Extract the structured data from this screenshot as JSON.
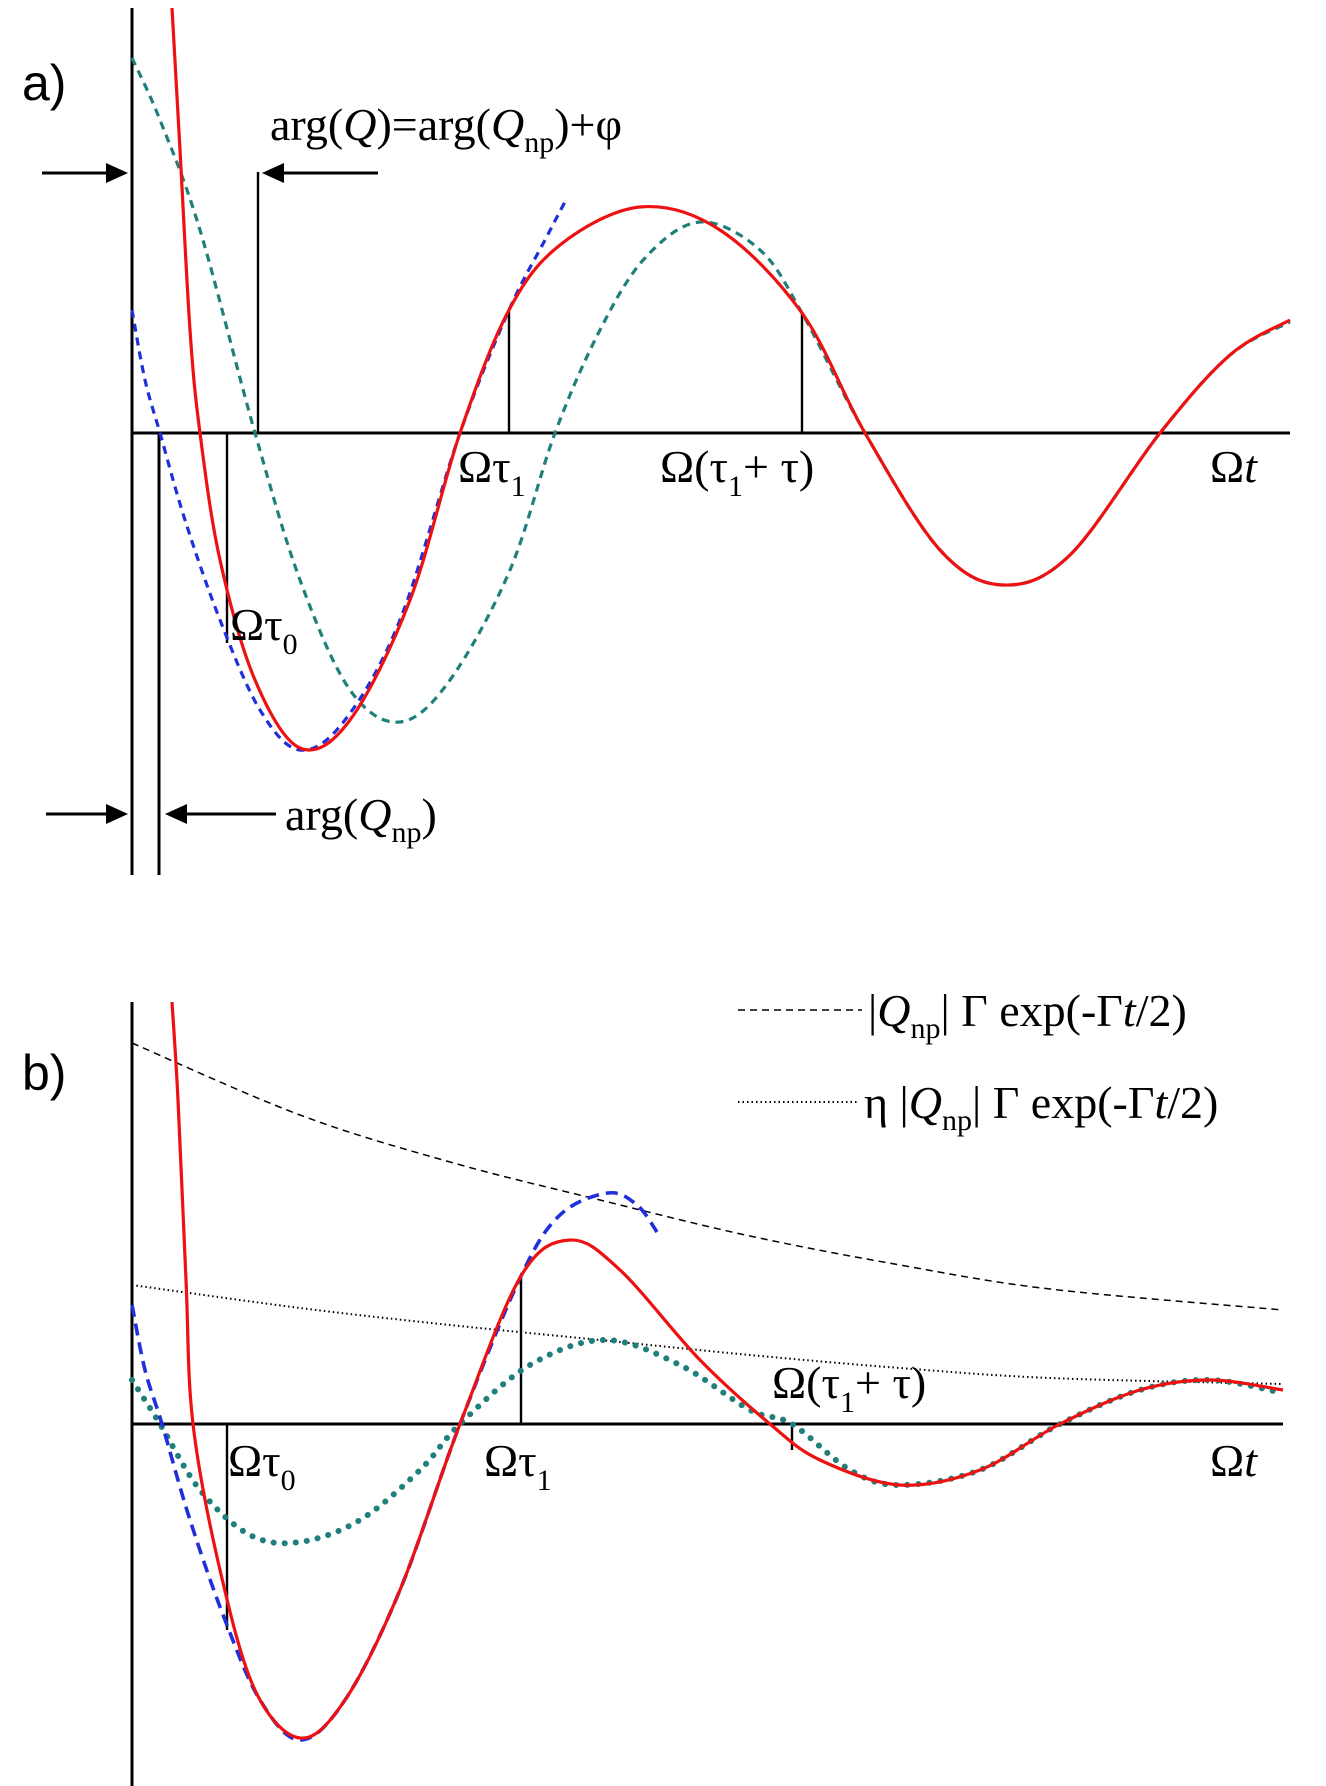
{
  "panel_a": {
    "panel_label": "a)",
    "top_label": {
      "prefix": "arg(",
      "q": "Q",
      "mid": ")=arg(",
      "q2": "Q",
      "sub": "np",
      "suffix": ")+φ"
    },
    "bottom_label": {
      "prefix": "arg(",
      "q": "Q",
      "sub": "np",
      "suffix": ")"
    },
    "tau0_label": {
      "main": "Ωτ",
      "sub": "0"
    },
    "tau1_label": {
      "main": "Ωτ",
      "sub": "1"
    },
    "tau1tau_label": {
      "main1": "Ω(τ",
      "sub": "1",
      "main2": "+ τ)"
    },
    "time_label": {
      "main": "Ω",
      "t": "t"
    }
  },
  "panel_b": {
    "panel_label": "b)",
    "legend": [
      {
        "pre": "|",
        "q": "Q",
        "sub": "np",
        "post": "| Γ exp(-Γ",
        "t": "t",
        "end": "/2)",
        "style": "dashed"
      },
      {
        "pre": "η |",
        "q": "Q",
        "sub": "np",
        "post": "| Γ exp(-Γ",
        "t": "t",
        "end": "/2)",
        "style": "dotted"
      }
    ],
    "tau0_label": {
      "main": "Ωτ",
      "sub": "0"
    },
    "tau1_label": {
      "main": "Ωτ",
      "sub": "1"
    },
    "tau1tau_label": {
      "main1": "Ω(τ",
      "sub": "1",
      "main2": "+ τ)"
    },
    "time_label": {
      "main": "Ω",
      "t": "t"
    }
  },
  "colors": {
    "red": "#ee1111",
    "blue": "#1f2fdc",
    "teal": "#1f7f7b",
    "black": "#000000"
  }
}
